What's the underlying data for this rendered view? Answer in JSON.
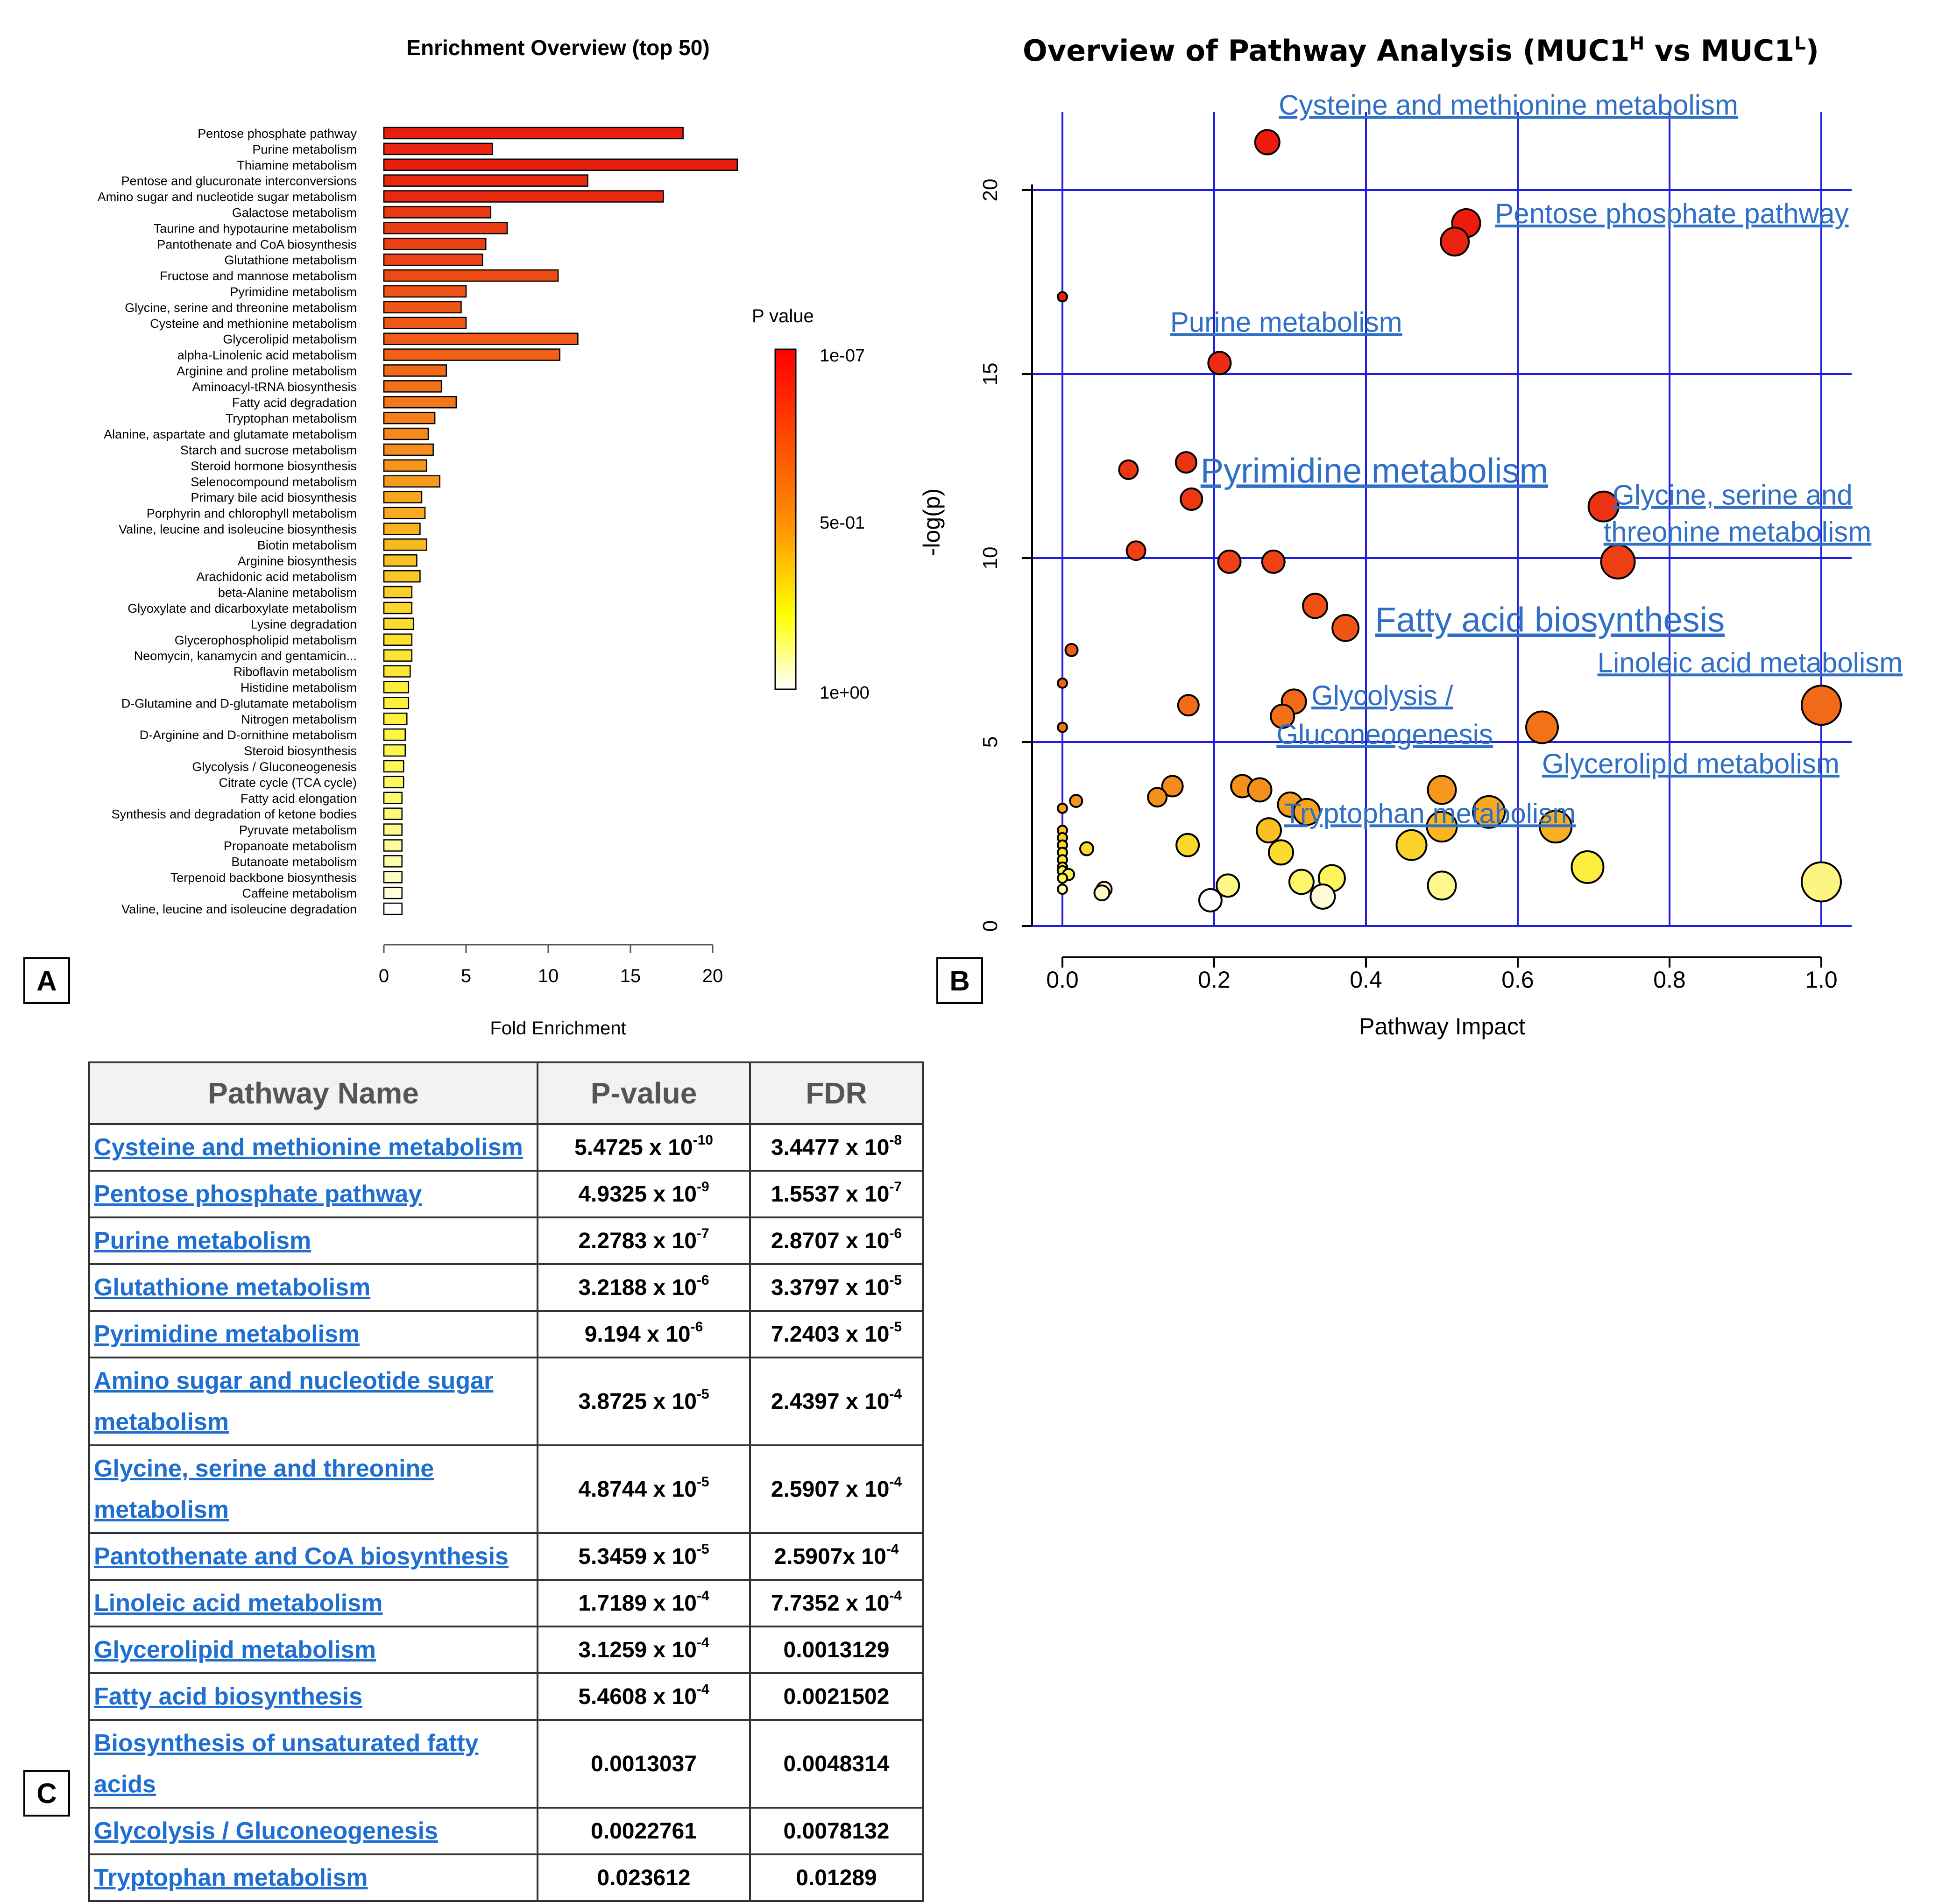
{
  "panels": {
    "a": "A",
    "b": "B",
    "c": "C"
  },
  "chart_data": [
    {
      "type": "bar",
      "orientation": "horizontal",
      "title": "Enrichment Overview (top 50)",
      "xlabel": "Fold Enrichment",
      "xlim": [
        0,
        22
      ],
      "xticks": [
        "0",
        "5",
        "10",
        "15",
        "20"
      ],
      "legend": {
        "title": "P value",
        "labels": [
          "1e-07",
          "5e-01",
          "1e+00"
        ],
        "placement": "right",
        "colors": [
          "#ff0000",
          "#ff8c00",
          "#ffff00",
          "#ffffff"
        ]
      },
      "categories": [
        "Pentose phosphate pathway",
        "Purine metabolism",
        "Thiamine metabolism",
        "Pentose and glucuronate interconversions",
        "Amino sugar and nucleotide sugar metabolism",
        "Galactose metabolism",
        "Taurine and hypotaurine metabolism",
        "Pantothenate and CoA biosynthesis",
        "Glutathione metabolism",
        "Fructose and mannose metabolism",
        "Pyrimidine metabolism",
        "Glycine, serine and threonine metabolism",
        "Cysteine and methionine metabolism",
        "Glycerolipid metabolism",
        "alpha-Linolenic acid metabolism",
        "Arginine and proline metabolism",
        "Aminoacyl-tRNA biosynthesis",
        "Fatty acid degradation",
        "Tryptophan metabolism",
        "Alanine, aspartate and glutamate metabolism",
        "Starch and sucrose metabolism",
        "Steroid hormone biosynthesis",
        "Selenocompound metabolism",
        "Primary bile acid biosynthesis",
        "Porphyrin and chlorophyll metabolism",
        "Valine, leucine and isoleucine biosynthesis",
        "Biotin metabolism",
        "Arginine biosynthesis",
        "Arachidonic acid metabolism",
        "beta-Alanine metabolism",
        "Glyoxylate and dicarboxylate metabolism",
        "Lysine degradation",
        "Glycerophospholipid metabolism",
        "Neomycin, kanamycin and gentamicin...",
        "Riboflavin metabolism",
        "Histidine metabolism",
        "D-Glutamine and D-glutamate metabolism",
        "Nitrogen metabolism",
        "D-Arginine and D-ornithine metabolism",
        "Steroid biosynthesis",
        "Glycolysis / Gluconeogenesis",
        "Citrate cycle (TCA cycle)",
        "Fatty acid elongation",
        "Synthesis and degradation of ketone bodies",
        "Pyruvate metabolism",
        "Propanoate metabolism",
        "Butanoate metabolism",
        "Terpenoid backbone biosynthesis",
        "Caffeine metabolism",
        "Valine, leucine and isoleucine degradation"
      ],
      "values": [
        18.2,
        6.6,
        21.5,
        12.4,
        17.0,
        6.5,
        7.5,
        6.2,
        6.0,
        10.6,
        5.0,
        4.7,
        5.0,
        11.8,
        10.7,
        3.8,
        3.5,
        4.4,
        3.1,
        2.7,
        3.0,
        2.6,
        3.4,
        2.3,
        2.5,
        2.2,
        2.6,
        2.0,
        2.2,
        1.7,
        1.7,
        1.8,
        1.7,
        1.7,
        1.6,
        1.5,
        1.5,
        1.4,
        1.3,
        1.3,
        1.2,
        1.2,
        1.1,
        1.1,
        1.1,
        1.1,
        1.1,
        1.1,
        1.1,
        1.1
      ],
      "colors": [
        "#e81e0e",
        "#ea2510",
        "#e81e0e",
        "#ea2a10",
        "#ea2810",
        "#eb3a11",
        "#ec3c12",
        "#ed3f12",
        "#ed4213",
        "#ee4a14",
        "#ef5315",
        "#ef5515",
        "#ef5715",
        "#f05c16",
        "#f06116",
        "#f16a17",
        "#f27018",
        "#f37619",
        "#f47e1a",
        "#f5881b",
        "#f58d1c",
        "#f6951d",
        "#f69a1e",
        "#f7a51f",
        "#f7aa20",
        "#f8b221",
        "#f8b822",
        "#f9c224",
        "#f9c826",
        "#fad028",
        "#fad52a",
        "#fbdb2c",
        "#fbe02e",
        "#fce531",
        "#fce834",
        "#fced37",
        "#fcf03b",
        "#fdf340",
        "#fdf545",
        "#fdf64c",
        "#fdf755",
        "#fdf85e",
        "#fef96a",
        "#fefa78",
        "#fefb88",
        "#fefc98",
        "#fefdab",
        "#fefdc0",
        "#fefed8",
        "#ffffff"
      ]
    },
    {
      "type": "scatter",
      "title": "Overview of Pathway Analysis (MUC1",
      "title_sup_1": "H",
      "title_mid": " vs MUC1",
      "title_sup_2": "L",
      "title_end": ")",
      "xlabel": "Pathway Impact",
      "ylabel": "-log(p)",
      "xlim": [
        -0.05,
        1.04
      ],
      "ylim": [
        0,
        22
      ],
      "grid": true,
      "xticks": [
        "0.0",
        "0.2",
        "0.4",
        "0.6",
        "0.8",
        "1.0"
      ],
      "yticks": [
        "0",
        "5",
        "10",
        "15",
        "20"
      ],
      "points": [
        {
          "x": 0.27,
          "y": 21.3,
          "r": 26,
          "c": "#ee1a0c"
        },
        {
          "x": 0.532,
          "y": 19.1,
          "r": 30,
          "c": "#ee1a0c"
        },
        {
          "x": 0.517,
          "y": 18.6,
          "r": 30,
          "c": "#ea2210"
        },
        {
          "x": 0.0,
          "y": 17.1,
          "r": 10,
          "c": "#e8240f"
        },
        {
          "x": 0.207,
          "y": 15.3,
          "r": 24,
          "c": "#ec2c12"
        },
        {
          "x": 0.163,
          "y": 12.6,
          "r": 22,
          "c": "#ec3212"
        },
        {
          "x": 0.087,
          "y": 12.4,
          "r": 20,
          "c": "#ed3613"
        },
        {
          "x": 0.17,
          "y": 11.6,
          "r": 23,
          "c": "#ed3813"
        },
        {
          "x": 0.713,
          "y": 11.4,
          "r": 32,
          "c": "#ed3213"
        },
        {
          "x": 0.097,
          "y": 10.2,
          "r": 20,
          "c": "#ee4014"
        },
        {
          "x": 0.22,
          "y": 9.9,
          "r": 24,
          "c": "#ee4214"
        },
        {
          "x": 0.278,
          "y": 9.9,
          "r": 24,
          "c": "#ee4214"
        },
        {
          "x": 0.732,
          "y": 9.9,
          "r": 36,
          "c": "#ee3e14"
        },
        {
          "x": 0.333,
          "y": 8.7,
          "r": 26,
          "c": "#ef4e15"
        },
        {
          "x": 0.373,
          "y": 8.1,
          "r": 28,
          "c": "#f05416"
        },
        {
          "x": 0.012,
          "y": 7.5,
          "r": 13,
          "c": "#f05c16"
        },
        {
          "x": 0.0,
          "y": 6.6,
          "r": 10,
          "c": "#f06016"
        },
        {
          "x": 1.0,
          "y": 6.0,
          "r": 42,
          "c": "#f26a18"
        },
        {
          "x": 0.305,
          "y": 6.1,
          "r": 26,
          "c": "#f26a18"
        },
        {
          "x": 0.166,
          "y": 6.0,
          "r": 22,
          "c": "#f26c18"
        },
        {
          "x": 0.29,
          "y": 5.7,
          "r": 25,
          "c": "#f37019"
        },
        {
          "x": 0.632,
          "y": 5.4,
          "r": 34,
          "c": "#f37219"
        },
        {
          "x": 0.0,
          "y": 5.4,
          "r": 10,
          "c": "#f37219"
        },
        {
          "x": 0.145,
          "y": 3.8,
          "r": 22,
          "c": "#f48a1b"
        },
        {
          "x": 0.237,
          "y": 3.8,
          "r": 24,
          "c": "#f5901c"
        },
        {
          "x": 0.26,
          "y": 3.7,
          "r": 25,
          "c": "#f5901c"
        },
        {
          "x": 0.5,
          "y": 3.7,
          "r": 30,
          "c": "#f6981d"
        },
        {
          "x": 0.125,
          "y": 3.5,
          "r": 20,
          "c": "#f5901c"
        },
        {
          "x": 0.018,
          "y": 3.4,
          "r": 13,
          "c": "#f5941c"
        },
        {
          "x": 0.3,
          "y": 3.3,
          "r": 26,
          "c": "#f69c1e"
        },
        {
          "x": 0.0,
          "y": 3.2,
          "r": 10,
          "c": "#f7a01e"
        },
        {
          "x": 0.322,
          "y": 3.1,
          "r": 28,
          "c": "#f7a41f"
        },
        {
          "x": 0.562,
          "y": 3.1,
          "r": 34,
          "c": "#f7a81f"
        },
        {
          "x": 0.5,
          "y": 2.7,
          "r": 32,
          "c": "#f8b621"
        },
        {
          "x": 0.65,
          "y": 2.7,
          "r": 34,
          "c": "#f8b021"
        },
        {
          "x": 0.272,
          "y": 2.6,
          "r": 26,
          "c": "#f9c023"
        },
        {
          "x": 0.0,
          "y": 2.6,
          "r": 10,
          "c": "#f9c424"
        },
        {
          "x": 0.0,
          "y": 2.4,
          "r": 10,
          "c": "#face27"
        },
        {
          "x": 0.0,
          "y": 2.2,
          "r": 10,
          "c": "#fad229"
        },
        {
          "x": 0.165,
          "y": 2.2,
          "r": 24,
          "c": "#fad82b"
        },
        {
          "x": 0.46,
          "y": 2.2,
          "r": 32,
          "c": "#fad42a"
        },
        {
          "x": 0.032,
          "y": 2.1,
          "r": 14,
          "c": "#fbd82c"
        },
        {
          "x": 0.288,
          "y": 2.0,
          "r": 26,
          "c": "#fbdc2e"
        },
        {
          "x": 0.0,
          "y": 2.0,
          "r": 10,
          "c": "#fbde2e"
        },
        {
          "x": 0.0,
          "y": 1.8,
          "r": 10,
          "c": "#fce433"
        },
        {
          "x": 0.0,
          "y": 1.6,
          "r": 10,
          "c": "#fce838"
        },
        {
          "x": 0.692,
          "y": 1.6,
          "r": 34,
          "c": "#fcee3c"
        },
        {
          "x": 0.0,
          "y": 1.5,
          "r": 10,
          "c": "#fdf042"
        },
        {
          "x": 0.008,
          "y": 1.4,
          "r": 12,
          "c": "#fdf246"
        },
        {
          "x": 0.0,
          "y": 1.3,
          "r": 10,
          "c": "#fdf44c"
        },
        {
          "x": 0.355,
          "y": 1.3,
          "r": 28,
          "c": "#fdf560"
        },
        {
          "x": 1.0,
          "y": 1.2,
          "r": 42,
          "c": "#fdf582"
        },
        {
          "x": 0.315,
          "y": 1.2,
          "r": 26,
          "c": "#fdf66a"
        },
        {
          "x": 0.218,
          "y": 1.1,
          "r": 24,
          "c": "#fdf786"
        },
        {
          "x": 0.5,
          "y": 1.1,
          "r": 30,
          "c": "#fdf88c"
        },
        {
          "x": 0.0,
          "y": 1.0,
          "r": 10,
          "c": "#fef9a4"
        },
        {
          "x": 0.055,
          "y": 1.0,
          "r": 16,
          "c": "#fefab4"
        },
        {
          "x": 0.052,
          "y": 0.9,
          "r": 16,
          "c": "#fefbc4"
        },
        {
          "x": 0.343,
          "y": 0.8,
          "r": 26,
          "c": "#fefcd6"
        },
        {
          "x": 0.195,
          "y": 0.7,
          "r": 24,
          "c": "#ffffff"
        }
      ],
      "annotations": [
        {
          "text": "Cysteine and methionine  metabolism",
          "x": 0.285,
          "y": 22.05,
          "size": 60
        },
        {
          "text": "Pentose phosphate  pathway",
          "x": 0.57,
          "y": 19.1,
          "size": 60
        },
        {
          "text": "Purine metabolism",
          "x": 0.142,
          "y": 16.15,
          "size": 60
        },
        {
          "text": "Pyrimidine metabolism",
          "x": 0.182,
          "y": 12.05,
          "size": 74
        },
        {
          "text": "Glycine, serine and",
          "x": 0.725,
          "y": 11.45,
          "size": 60
        },
        {
          "text": "threonine  metabolism",
          "x": 0.713,
          "y": 10.45,
          "size": 60
        },
        {
          "text": "Fatty acid biosynthesis",
          "x": 0.412,
          "y": 8.0,
          "size": 74
        },
        {
          "text": "Linoleic acid metabolism",
          "x": 0.705,
          "y": 6.9,
          "size": 60
        },
        {
          "text": "Glycolysis /",
          "x": 0.328,
          "y": 6.0,
          "size": 60
        },
        {
          "text": "Gluconeogenesis",
          "x": 0.282,
          "y": 4.95,
          "size": 60
        },
        {
          "text": "Glycerolipid metabolism",
          "x": 0.632,
          "y": 4.15,
          "size": 60
        },
        {
          "text": "Tryptophan metabolism",
          "x": 0.292,
          "y": 2.8,
          "size": 60
        }
      ]
    },
    {
      "type": "table",
      "columns": [
        "Pathway Name",
        "P-value",
        "FDR"
      ],
      "rows": [
        {
          "name": "Cysteine and methionine metabolism",
          "p_base": "5.4725 x 10",
          "p_exp": "-10",
          "p_plain": "",
          "fdr_base": "3.4477 x 10",
          "fdr_exp": "-8",
          "fdr_plain": ""
        },
        {
          "name": "Pentose phosphate pathway",
          "p_base": "4.9325 x 10",
          "p_exp": "-9",
          "p_plain": "",
          "fdr_base": "1.5537 x 10",
          "fdr_exp": "-7",
          "fdr_plain": ""
        },
        {
          "name": "Purine metabolism",
          "p_base": "2.2783 x 10",
          "p_exp": "-7",
          "p_plain": "",
          "fdr_base": "2.8707 x 10",
          "fdr_exp": "-6",
          "fdr_plain": ""
        },
        {
          "name": "Glutathione metabolism",
          "p_base": "3.2188 x 10",
          "p_exp": "-6",
          "p_plain": "",
          "fdr_base": "3.3797 x 10",
          "fdr_exp": "-5",
          "fdr_plain": ""
        },
        {
          "name": "Pyrimidine metabolism",
          "p_base": "9.194 x 10",
          "p_exp": "-6",
          "p_plain": "",
          "fdr_base": "7.2403 x 10",
          "fdr_exp": "-5",
          "fdr_plain": ""
        },
        {
          "name": "Amino sugar and nucleotide sugar metabolism",
          "p_base": "3.8725 x 10",
          "p_exp": "-5",
          "p_plain": "",
          "fdr_base": "2.4397 x 10",
          "fdr_exp": "-4",
          "fdr_plain": ""
        },
        {
          "name": "Glycine, serine and threonine metabolism",
          "p_base": "4.8744 x 10",
          "p_exp": "-5",
          "p_plain": "",
          "fdr_base": "2.5907 x 10",
          "fdr_exp": "-4",
          "fdr_plain": ""
        },
        {
          "name": "Pantothenate and CoA biosynthesis",
          "p_base": "5.3459 x 10",
          "p_exp": "-5",
          "p_plain": "",
          "fdr_base": "2.5907x 10",
          "fdr_exp": "-4",
          "fdr_plain": ""
        },
        {
          "name": "Linoleic acid metabolism",
          "p_base": "1.7189 x 10",
          "p_exp": "-4",
          "p_plain": "",
          "fdr_base": "7.7352 x 10",
          "fdr_exp": "-4",
          "fdr_plain": ""
        },
        {
          "name": "Glycerolipid metabolism",
          "p_base": "3.1259 x 10",
          "p_exp": "-4",
          "p_plain": "",
          "fdr_base": "",
          "fdr_exp": "",
          "fdr_plain": "0.0013129"
        },
        {
          "name": "Fatty acid biosynthesis",
          "p_base": "5.4608 x 10",
          "p_exp": "-4",
          "p_plain": "",
          "fdr_base": "",
          "fdr_exp": "",
          "fdr_plain": "0.0021502"
        },
        {
          "name": "Biosynthesis of unsaturated fatty acids",
          "p_base": "",
          "p_exp": "",
          "p_plain": "0.0013037",
          "fdr_base": "",
          "fdr_exp": "",
          "fdr_plain": "0.0048314"
        },
        {
          "name": "Glycolysis / Gluconeogenesis",
          "p_base": "",
          "p_exp": "",
          "p_plain": "0.0022761",
          "fdr_base": "",
          "fdr_exp": "",
          "fdr_plain": "0.0078132"
        },
        {
          "name": "Tryptophan metabolism",
          "p_base": "",
          "p_exp": "",
          "p_plain": "0.023612",
          "fdr_base": "",
          "fdr_exp": "",
          "fdr_plain": "0.01289"
        }
      ]
    }
  ]
}
